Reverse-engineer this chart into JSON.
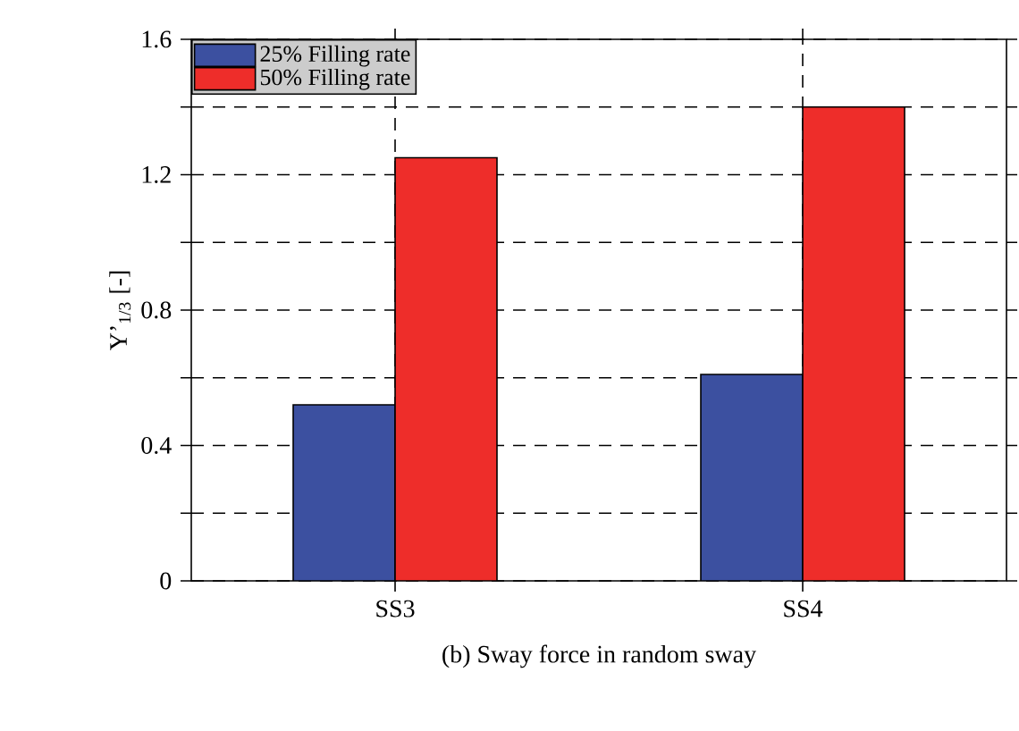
{
  "chart_data": {
    "type": "bar",
    "xlabel": "(b) Sway force in random sway",
    "ylabel": "Y’$_{1/3}$ [-]",
    "categories": [
      "SS3",
      "SS4"
    ],
    "series": [
      {
        "name": "25% Filling rate",
        "color": "#3c50a0",
        "values": [
          0.52,
          0.61
        ]
      },
      {
        "name": "50% Filling rate",
        "color": "#ee2d2a",
        "values": [
          1.25,
          1.4
        ]
      }
    ],
    "ylim": [
      0,
      1.6
    ],
    "yticks": [
      0,
      {
        "value": 0.2,
        "label": null
      },
      0.4,
      {
        "value": 0.6,
        "label": null
      },
      0.8,
      {
        "value": 1.0,
        "label": null
      },
      1.2,
      {
        "value": 1.4,
        "label": null
      },
      1.6
    ],
    "grid": true,
    "legend": "top left"
  }
}
